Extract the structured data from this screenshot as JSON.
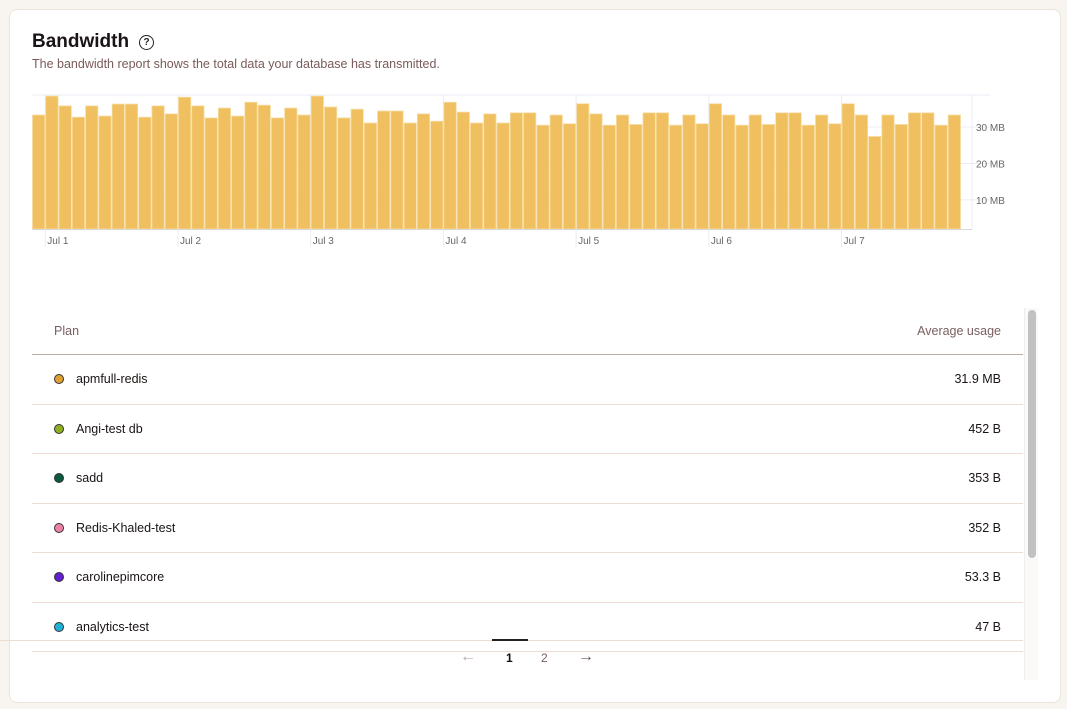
{
  "header": {
    "title": "Bandwidth",
    "help_icon": "question-circle-icon",
    "subtitle": "The bandwidth report shows the total data your database has transmitted."
  },
  "chart_data": {
    "type": "bar",
    "title": "",
    "xlabel": "",
    "ylabel": "",
    "bar_color": "#f0bf5f",
    "ylim": [
      2,
      38.8
    ],
    "y_unit": "MB",
    "y_ticks": [
      {
        "value": 10,
        "label": "10 MB"
      },
      {
        "value": 20,
        "label": "20 MB"
      },
      {
        "value": 30,
        "label": "30 MB"
      }
    ],
    "x_tick_labels": [
      "Jul 1",
      "Jul 2",
      "Jul 3",
      "Jul 4",
      "Jul 5",
      "Jul 6",
      "Jul 7"
    ],
    "bars_per_day": 10,
    "values": [
      33.3,
      38.5,
      35.8,
      32.7,
      35.8,
      33.0,
      36.3,
      36.3,
      32.7,
      35.8,
      33.6,
      38.2,
      35.8,
      32.5,
      35.2,
      33.0,
      36.8,
      36.0,
      32.5,
      35.2,
      33.3,
      38.5,
      35.5,
      32.5,
      34.9,
      31.1,
      34.4,
      34.4,
      31.1,
      33.6,
      31.6,
      36.8,
      34.1,
      31.1,
      33.6,
      31.1,
      33.9,
      33.9,
      30.5,
      33.3,
      30.9,
      36.4,
      33.6,
      30.5,
      33.3,
      30.7,
      33.9,
      33.9,
      30.5,
      33.3,
      30.9,
      36.4,
      33.3,
      30.5,
      33.3,
      30.7,
      33.9,
      33.9,
      30.5,
      33.3,
      30.9,
      36.4,
      33.3,
      27.4,
      33.3,
      30.7,
      33.9,
      33.9,
      30.5,
      33.3
    ],
    "grid": true
  },
  "table": {
    "columns": [
      "Plan",
      "Average usage"
    ],
    "rows": [
      {
        "plan": "apmfull-redis",
        "usage": "31.9 MB",
        "color": "#e0a030"
      },
      {
        "plan": "Angi-test db",
        "usage": "452 B",
        "color": "#8fb020"
      },
      {
        "plan": "sadd",
        "usage": "353 B",
        "color": "#0a5a40"
      },
      {
        "plan": "Redis-Khaled-test",
        "usage": "352 B",
        "color": "#f080a8"
      },
      {
        "plan": "carolinepimcore",
        "usage": "53.3 B",
        "color": "#6020d0"
      },
      {
        "plan": "analytics-test",
        "usage": "47 B",
        "color": "#20b0d8"
      }
    ]
  },
  "pagination": {
    "prev": "←",
    "pages": [
      "1",
      "2"
    ],
    "current": "1",
    "next": "→"
  }
}
